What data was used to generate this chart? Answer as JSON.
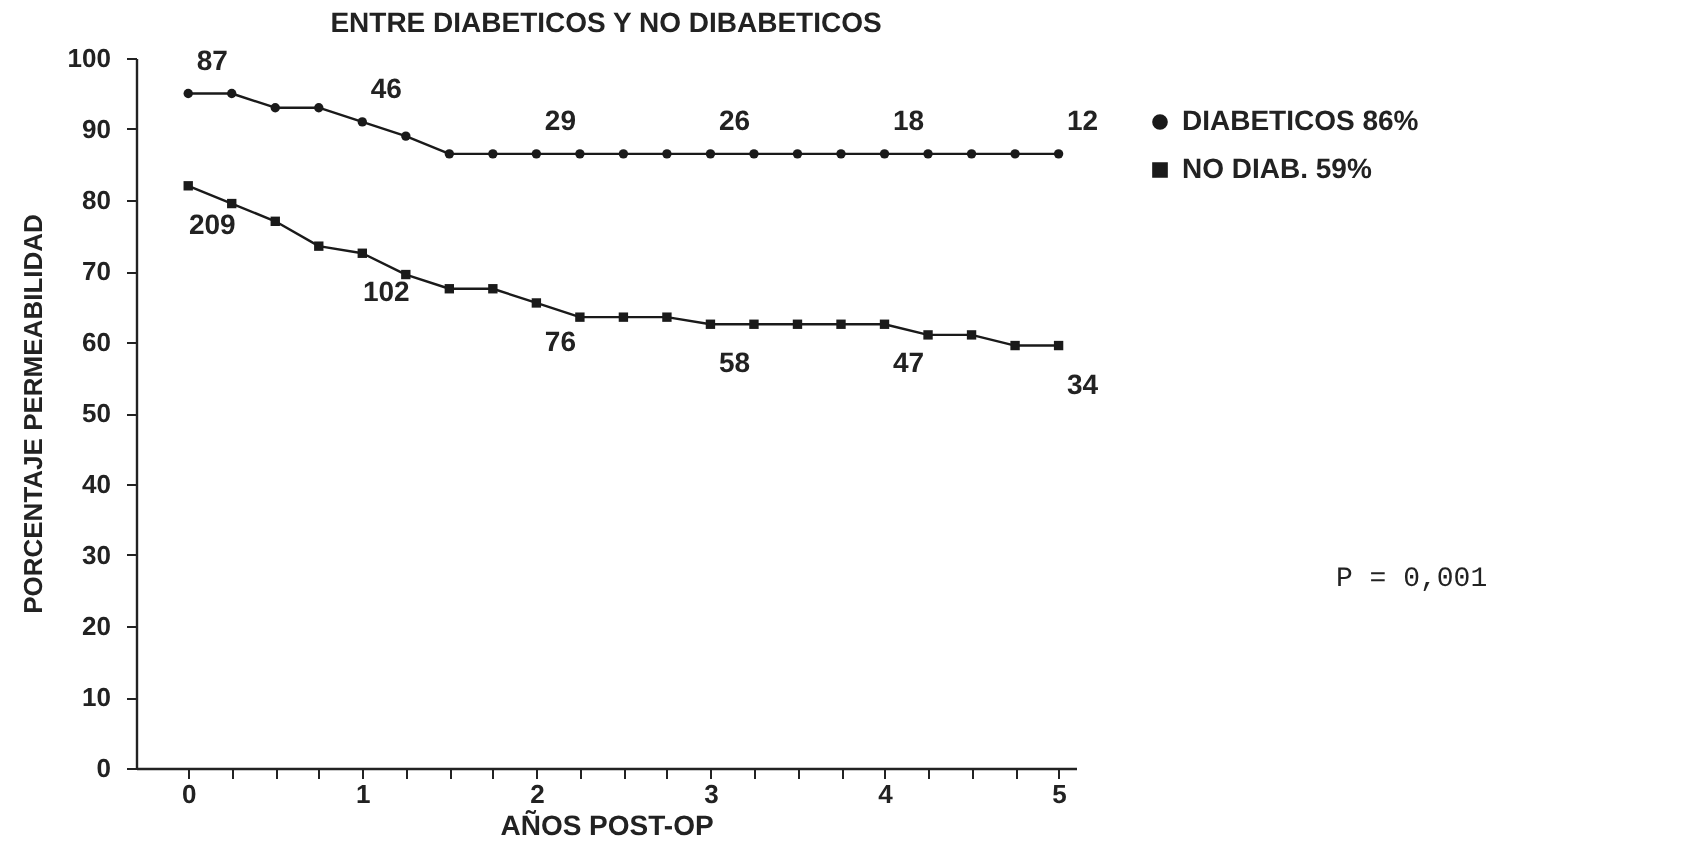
{
  "chart_data": {
    "type": "line",
    "title": "ENTRE DIABETICOS Y NO DIBABETICOS",
    "xlabel": "AÑOS POST-OP",
    "ylabel": "PORCENTAJE PERMEABILIDAD",
    "x": [
      0,
      0.25,
      0.5,
      0.75,
      1,
      1.25,
      1.5,
      1.75,
      2,
      2.25,
      2.5,
      2.75,
      3,
      3.25,
      3.5,
      3.75,
      4,
      4.25,
      4.5,
      4.75,
      5
    ],
    "series": [
      {
        "name": "DIABETICOS 86%",
        "color": "#1a1a1a",
        "marker": "circle",
        "values": [
          95,
          95,
          93,
          93,
          91,
          89,
          86.5,
          86.5,
          86.5,
          86.5,
          86.5,
          86.5,
          86.5,
          86.5,
          86.5,
          86.5,
          86.5,
          86.5,
          86.5,
          86.5,
          86.5
        ]
      },
      {
        "name": "NO DIAB. 59%",
        "color": "#1a1a1a",
        "marker": "square",
        "values": [
          82,
          79.5,
          77,
          73.5,
          72.5,
          69.5,
          67.5,
          67.5,
          65.5,
          63.5,
          63.5,
          63.5,
          62.5,
          62.5,
          62.5,
          62.5,
          62.5,
          61,
          61,
          59.5,
          59.5
        ]
      }
    ],
    "xlim": [
      -0.3,
      5.1
    ],
    "ylim": [
      0,
      100
    ],
    "xticks": [
      0,
      {
        "value": 0.25,
        "label": null
      },
      {
        "value": 0.5,
        "label": null
      },
      {
        "value": 0.75,
        "label": null
      },
      1,
      {
        "value": 1.25,
        "label": null
      },
      {
        "value": 1.5,
        "label": null
      },
      {
        "value": 1.75,
        "label": null
      },
      2,
      {
        "value": 2.25,
        "label": null
      },
      {
        "value": 2.5,
        "label": null
      },
      {
        "value": 2.75,
        "label": null
      },
      3,
      {
        "value": 3.25,
        "label": null
      },
      {
        "value": 3.5,
        "label": null
      },
      {
        "value": 3.75,
        "label": null
      },
      4,
      {
        "value": 4.25,
        "label": null
      },
      {
        "value": 4.5,
        "label": null
      },
      {
        "value": 4.75,
        "label": null
      },
      5
    ],
    "yticks": [
      0,
      10,
      20,
      30,
      40,
      50,
      60,
      70,
      80,
      90,
      100
    ],
    "grid": false,
    "legend": "right",
    "line_style": "solid",
    "annotations": [
      {
        "text": "87",
        "x": 0,
        "y": 95
      },
      {
        "text": "46",
        "x": 1,
        "y": 91
      },
      {
        "text": "29",
        "x": 2,
        "y": 86.5
      },
      {
        "text": "26",
        "x": 3,
        "y": 86.5
      },
      {
        "text": "18",
        "x": 4,
        "y": 86.5
      },
      {
        "text": "12",
        "x": 5,
        "y": 86.5
      },
      {
        "text": "209",
        "x": 0,
        "y": 82
      },
      {
        "text": "102",
        "x": 1,
        "y": 72.5
      },
      {
        "text": "76",
        "x": 2,
        "y": 65.5
      },
      {
        "text": "58",
        "x": 3,
        "y": 62.5
      },
      {
        "text": "47",
        "x": 4,
        "y": 62.5
      },
      {
        "text": "34",
        "x": 5,
        "y": 59.5
      },
      "P = 0,001"
    ]
  }
}
